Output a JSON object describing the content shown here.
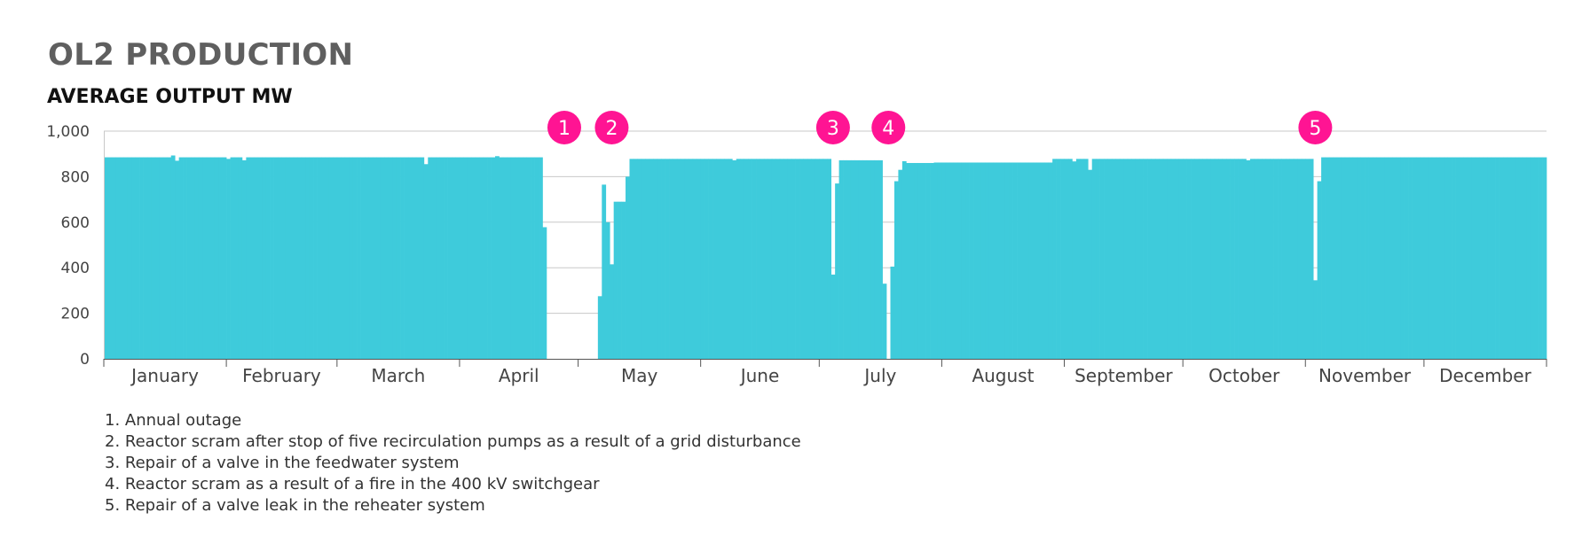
{
  "title": "OL2 PRODUCTION",
  "subtitle": "AVERAGE OUTPUT MW",
  "colors": {
    "bar": "#3ecbdb",
    "marker": "#ff1493",
    "grid": "#c8c8c8",
    "axis": "#555555",
    "text": "#444444"
  },
  "chart_data": {
    "type": "bar",
    "title": "OL2 PRODUCTION",
    "subtitle": "AVERAGE OUTPUT MW",
    "ylim": [
      0,
      1000
    ],
    "yticks": [
      "0",
      "200",
      "400",
      "600",
      "800",
      "1,000"
    ],
    "ytick_values": [
      0,
      200,
      400,
      600,
      800,
      1000
    ],
    "grid": true,
    "x_unit": "day of year",
    "months": [
      {
        "label": "January",
        "start_day": 1,
        "days": 31
      },
      {
        "label": "February",
        "start_day": 32,
        "days": 28
      },
      {
        "label": "March",
        "start_day": 60,
        "days": 31
      },
      {
        "label": "April",
        "start_day": 91,
        "days": 30
      },
      {
        "label": "May",
        "start_day": 121,
        "days": 31
      },
      {
        "label": "June",
        "start_day": 152,
        "days": 30
      },
      {
        "label": "July",
        "start_day": 182,
        "days": 31
      },
      {
        "label": "August",
        "start_day": 213,
        "days": 31
      },
      {
        "label": "September",
        "start_day": 244,
        "days": 30
      },
      {
        "label": "October",
        "start_day": 274,
        "days": 31
      },
      {
        "label": "November",
        "start_day": 305,
        "days": 30
      },
      {
        "label": "December",
        "start_day": 335,
        "days": 31
      }
    ],
    "baseline_segments": [
      {
        "from_day": 1,
        "to_day": 111,
        "value": 885
      },
      {
        "from_day": 112,
        "to_day": 112,
        "value": 578
      },
      {
        "from_day": 113,
        "to_day": 125,
        "value": 0
      },
      {
        "from_day": 126,
        "to_day": 126,
        "value": 275
      },
      {
        "from_day": 127,
        "to_day": 127,
        "value": 765
      },
      {
        "from_day": 128,
        "to_day": 128,
        "value": 600
      },
      {
        "from_day": 129,
        "to_day": 129,
        "value": 415
      },
      {
        "from_day": 130,
        "to_day": 132,
        "value": 690
      },
      {
        "from_day": 133,
        "to_day": 133,
        "value": 800
      },
      {
        "from_day": 134,
        "to_day": 184,
        "value": 878
      },
      {
        "from_day": 185,
        "to_day": 185,
        "value": 370
      },
      {
        "from_day": 186,
        "to_day": 186,
        "value": 770
      },
      {
        "from_day": 187,
        "to_day": 197,
        "value": 872
      },
      {
        "from_day": 198,
        "to_day": 198,
        "value": 330
      },
      {
        "from_day": 199,
        "to_day": 199,
        "value": 0
      },
      {
        "from_day": 200,
        "to_day": 200,
        "value": 405
      },
      {
        "from_day": 201,
        "to_day": 201,
        "value": 780
      },
      {
        "from_day": 202,
        "to_day": 202,
        "value": 830
      },
      {
        "from_day": 203,
        "to_day": 203,
        "value": 868
      },
      {
        "from_day": 204,
        "to_day": 210,
        "value": 860
      },
      {
        "from_day": 211,
        "to_day": 240,
        "value": 862
      },
      {
        "from_day": 241,
        "to_day": 306,
        "value": 878
      },
      {
        "from_day": 307,
        "to_day": 307,
        "value": 345
      },
      {
        "from_day": 308,
        "to_day": 308,
        "value": 780
      },
      {
        "from_day": 309,
        "to_day": 365,
        "value": 885
      }
    ],
    "daily_overrides": [
      {
        "day": 18,
        "value": 893
      },
      {
        "day": 19,
        "value": 870
      },
      {
        "day": 32,
        "value": 878
      },
      {
        "day": 36,
        "value": 872
      },
      {
        "day": 82,
        "value": 855
      },
      {
        "day": 100,
        "value": 890
      },
      {
        "day": 160,
        "value": 872
      },
      {
        "day": 250,
        "value": 830
      },
      {
        "day": 246,
        "value": 867
      },
      {
        "day": 290,
        "value": 872
      }
    ],
    "annotations": [
      {
        "label": "1",
        "day": 117
      },
      {
        "label": "2",
        "day": 129
      },
      {
        "label": "3",
        "day": 185
      },
      {
        "label": "4",
        "day": 199
      },
      {
        "label": "5",
        "day": 307
      }
    ]
  },
  "notes": [
    "1. Annual outage",
    "2. Reactor scram after stop of five recirculation pumps as a result of a grid disturbance",
    "3. Repair of a valve in the feedwater system",
    "4. Reactor scram as a result of a fire in the 400 kV switchgear",
    "5. Repair of a valve leak in the reheater system"
  ]
}
